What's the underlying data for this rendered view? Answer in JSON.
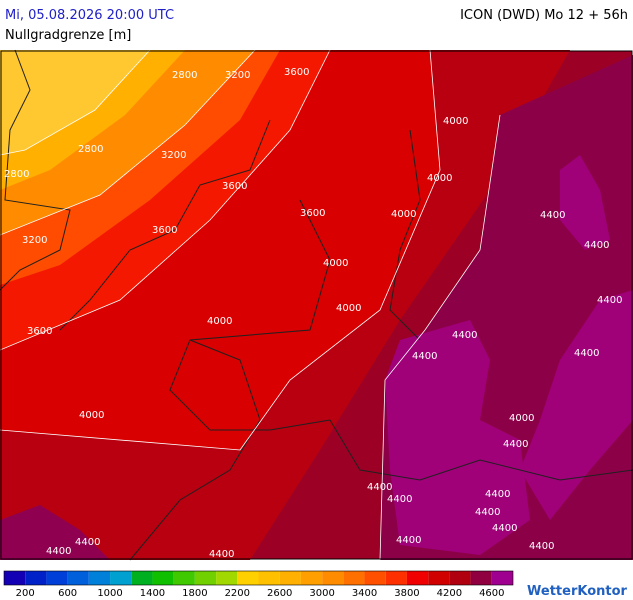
{
  "header": {
    "datetime": "Mi, 05.08.2026 20:00 UTC",
    "parameter": "Nullgradgrenze [m]",
    "model": "ICON (DWD) Mo 12 + 56h"
  },
  "map": {
    "contour_labels": [
      "2800",
      "3200",
      "3600",
      "2800",
      "3200",
      "2800",
      "3600",
      "3200",
      "3600",
      "3600",
      "3600",
      "4000",
      "4000",
      "4000",
      "4000",
      "4000",
      "4000",
      "4000",
      "4400",
      "4400",
      "4400",
      "4400",
      "4400",
      "4400",
      "4000",
      "4400",
      "4400",
      "4400",
      "4400",
      "4400",
      "4400",
      "4400",
      "4400",
      "4400",
      "4400",
      "4400"
    ]
  },
  "legend": {
    "labels": [
      "200",
      "600",
      "1000",
      "1400",
      "1800",
      "2200",
      "2600",
      "3000",
      "3400",
      "3800",
      "4200",
      "4600"
    ],
    "colors": [
      "#1400b4",
      "#0020c8",
      "#0040d8",
      "#0060dc",
      "#0080d8",
      "#00a0d0",
      "#00b020",
      "#10c000",
      "#40c800",
      "#70d000",
      "#a0d800",
      "#ffd000",
      "#ffc000",
      "#ffb000",
      "#ffa000",
      "#ff8c00",
      "#ff7000",
      "#ff5000",
      "#ff3000",
      "#f00000",
      "#d00000",
      "#b00010",
      "#900040",
      "#a00090"
    ]
  },
  "logo": "WetterKontor"
}
